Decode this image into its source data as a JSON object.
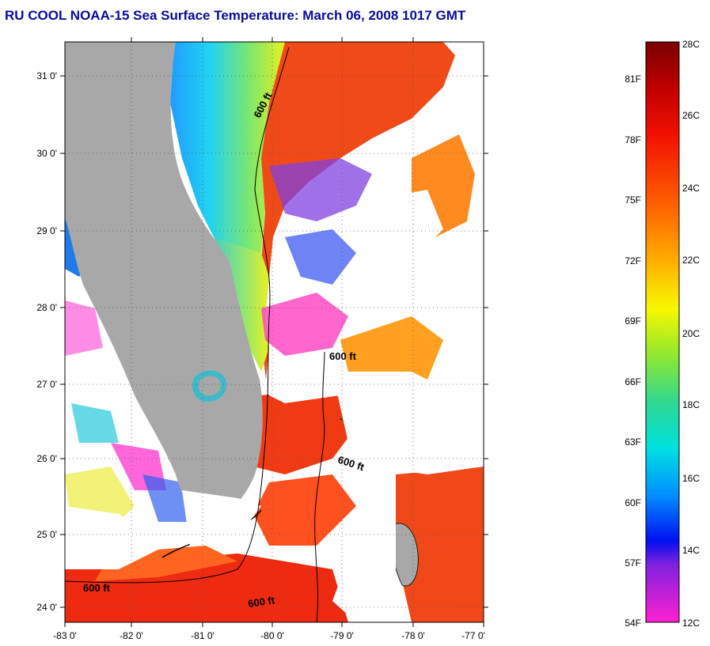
{
  "title": "RU COOL  NOAA-15  Sea Surface Temperature:  March 06, 2008 1017 GMT",
  "map": {
    "lat_ticks": [
      "31 0'",
      "30 0'",
      "29 0'",
      "28 0'",
      "27 0'",
      "26 0'",
      "25 0'",
      "24 0'"
    ],
    "lon_ticks": [
      "-83 0'",
      "-82 0'",
      "-81 0'",
      "-80 0'",
      "-79 0'",
      "-78 0'",
      "-77 0'"
    ],
    "contour_labels": [
      "600 ft",
      "600 ft",
      "600 ft",
      "600 ft",
      "600 ft"
    ],
    "colors": {
      "land": "#a8a8a8",
      "cloud": "#ffffff",
      "gulf_stream": "#f04a18"
    }
  },
  "colorbar": {
    "celsius_labels": [
      "28C",
      "26C",
      "24C",
      "22C",
      "20C",
      "18C",
      "16C",
      "14C",
      "12C"
    ],
    "fahrenheit_labels": [
      "81F",
      "78F",
      "75F",
      "72F",
      "69F",
      "66F",
      "63F",
      "60F",
      "57F",
      "54F"
    ]
  }
}
